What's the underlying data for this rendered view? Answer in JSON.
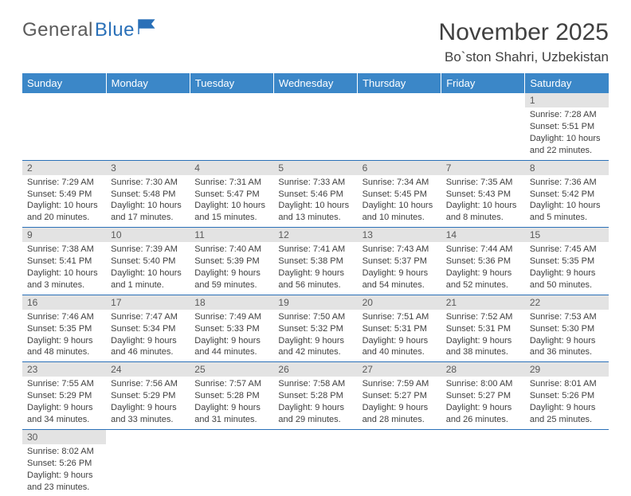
{
  "brand": {
    "part1": "General",
    "part2": "Blue"
  },
  "title": "November 2025",
  "location": "Bo`ston Shahri, Uzbekistan",
  "headers": [
    "Sunday",
    "Monday",
    "Tuesday",
    "Wednesday",
    "Thursday",
    "Friday",
    "Saturday"
  ],
  "colors": {
    "header_bg": "#3b87c8",
    "logo_blue": "#2a70b8",
    "day_bar_bg": "#e3e3e3",
    "border": "#2a70b8"
  },
  "weeks": [
    [
      null,
      null,
      null,
      null,
      null,
      null,
      {
        "n": "1",
        "sr": "Sunrise: 7:28 AM",
        "ss": "Sunset: 5:51 PM",
        "d1": "Daylight: 10 hours",
        "d2": "and 22 minutes."
      }
    ],
    [
      {
        "n": "2",
        "sr": "Sunrise: 7:29 AM",
        "ss": "Sunset: 5:49 PM",
        "d1": "Daylight: 10 hours",
        "d2": "and 20 minutes."
      },
      {
        "n": "3",
        "sr": "Sunrise: 7:30 AM",
        "ss": "Sunset: 5:48 PM",
        "d1": "Daylight: 10 hours",
        "d2": "and 17 minutes."
      },
      {
        "n": "4",
        "sr": "Sunrise: 7:31 AM",
        "ss": "Sunset: 5:47 PM",
        "d1": "Daylight: 10 hours",
        "d2": "and 15 minutes."
      },
      {
        "n": "5",
        "sr": "Sunrise: 7:33 AM",
        "ss": "Sunset: 5:46 PM",
        "d1": "Daylight: 10 hours",
        "d2": "and 13 minutes."
      },
      {
        "n": "6",
        "sr": "Sunrise: 7:34 AM",
        "ss": "Sunset: 5:45 PM",
        "d1": "Daylight: 10 hours",
        "d2": "and 10 minutes."
      },
      {
        "n": "7",
        "sr": "Sunrise: 7:35 AM",
        "ss": "Sunset: 5:43 PM",
        "d1": "Daylight: 10 hours",
        "d2": "and 8 minutes."
      },
      {
        "n": "8",
        "sr": "Sunrise: 7:36 AM",
        "ss": "Sunset: 5:42 PM",
        "d1": "Daylight: 10 hours",
        "d2": "and 5 minutes."
      }
    ],
    [
      {
        "n": "9",
        "sr": "Sunrise: 7:38 AM",
        "ss": "Sunset: 5:41 PM",
        "d1": "Daylight: 10 hours",
        "d2": "and 3 minutes."
      },
      {
        "n": "10",
        "sr": "Sunrise: 7:39 AM",
        "ss": "Sunset: 5:40 PM",
        "d1": "Daylight: 10 hours",
        "d2": "and 1 minute."
      },
      {
        "n": "11",
        "sr": "Sunrise: 7:40 AM",
        "ss": "Sunset: 5:39 PM",
        "d1": "Daylight: 9 hours",
        "d2": "and 59 minutes."
      },
      {
        "n": "12",
        "sr": "Sunrise: 7:41 AM",
        "ss": "Sunset: 5:38 PM",
        "d1": "Daylight: 9 hours",
        "d2": "and 56 minutes."
      },
      {
        "n": "13",
        "sr": "Sunrise: 7:43 AM",
        "ss": "Sunset: 5:37 PM",
        "d1": "Daylight: 9 hours",
        "d2": "and 54 minutes."
      },
      {
        "n": "14",
        "sr": "Sunrise: 7:44 AM",
        "ss": "Sunset: 5:36 PM",
        "d1": "Daylight: 9 hours",
        "d2": "and 52 minutes."
      },
      {
        "n": "15",
        "sr": "Sunrise: 7:45 AM",
        "ss": "Sunset: 5:35 PM",
        "d1": "Daylight: 9 hours",
        "d2": "and 50 minutes."
      }
    ],
    [
      {
        "n": "16",
        "sr": "Sunrise: 7:46 AM",
        "ss": "Sunset: 5:35 PM",
        "d1": "Daylight: 9 hours",
        "d2": "and 48 minutes."
      },
      {
        "n": "17",
        "sr": "Sunrise: 7:47 AM",
        "ss": "Sunset: 5:34 PM",
        "d1": "Daylight: 9 hours",
        "d2": "and 46 minutes."
      },
      {
        "n": "18",
        "sr": "Sunrise: 7:49 AM",
        "ss": "Sunset: 5:33 PM",
        "d1": "Daylight: 9 hours",
        "d2": "and 44 minutes."
      },
      {
        "n": "19",
        "sr": "Sunrise: 7:50 AM",
        "ss": "Sunset: 5:32 PM",
        "d1": "Daylight: 9 hours",
        "d2": "and 42 minutes."
      },
      {
        "n": "20",
        "sr": "Sunrise: 7:51 AM",
        "ss": "Sunset: 5:31 PM",
        "d1": "Daylight: 9 hours",
        "d2": "and 40 minutes."
      },
      {
        "n": "21",
        "sr": "Sunrise: 7:52 AM",
        "ss": "Sunset: 5:31 PM",
        "d1": "Daylight: 9 hours",
        "d2": "and 38 minutes."
      },
      {
        "n": "22",
        "sr": "Sunrise: 7:53 AM",
        "ss": "Sunset: 5:30 PM",
        "d1": "Daylight: 9 hours",
        "d2": "and 36 minutes."
      }
    ],
    [
      {
        "n": "23",
        "sr": "Sunrise: 7:55 AM",
        "ss": "Sunset: 5:29 PM",
        "d1": "Daylight: 9 hours",
        "d2": "and 34 minutes."
      },
      {
        "n": "24",
        "sr": "Sunrise: 7:56 AM",
        "ss": "Sunset: 5:29 PM",
        "d1": "Daylight: 9 hours",
        "d2": "and 33 minutes."
      },
      {
        "n": "25",
        "sr": "Sunrise: 7:57 AM",
        "ss": "Sunset: 5:28 PM",
        "d1": "Daylight: 9 hours",
        "d2": "and 31 minutes."
      },
      {
        "n": "26",
        "sr": "Sunrise: 7:58 AM",
        "ss": "Sunset: 5:28 PM",
        "d1": "Daylight: 9 hours",
        "d2": "and 29 minutes."
      },
      {
        "n": "27",
        "sr": "Sunrise: 7:59 AM",
        "ss": "Sunset: 5:27 PM",
        "d1": "Daylight: 9 hours",
        "d2": "and 28 minutes."
      },
      {
        "n": "28",
        "sr": "Sunrise: 8:00 AM",
        "ss": "Sunset: 5:27 PM",
        "d1": "Daylight: 9 hours",
        "d2": "and 26 minutes."
      },
      {
        "n": "29",
        "sr": "Sunrise: 8:01 AM",
        "ss": "Sunset: 5:26 PM",
        "d1": "Daylight: 9 hours",
        "d2": "and 25 minutes."
      }
    ],
    [
      {
        "n": "30",
        "sr": "Sunrise: 8:02 AM",
        "ss": "Sunset: 5:26 PM",
        "d1": "Daylight: 9 hours",
        "d2": "and 23 minutes."
      },
      null,
      null,
      null,
      null,
      null,
      null
    ]
  ]
}
